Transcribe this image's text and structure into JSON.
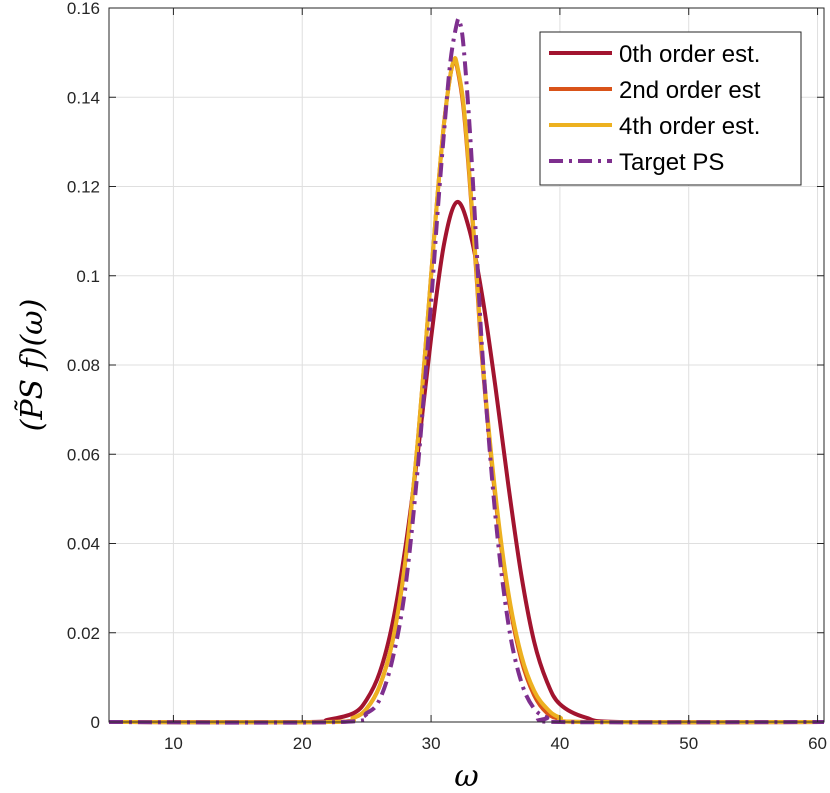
{
  "chart_data": {
    "type": "line",
    "title": "",
    "xlabel": "ω",
    "ylabel": "(P̃S f)(ω)",
    "xlim": [
      5,
      60.5
    ],
    "ylim": [
      0,
      0.16
    ],
    "grid": true,
    "legend_placement": "top-right",
    "xticks": [
      10,
      20,
      30,
      40,
      50,
      60
    ],
    "xtick_labels": [
      "10",
      "20",
      "30",
      "40",
      "50",
      "60"
    ],
    "yticks": [
      0,
      0.02,
      0.04,
      0.06,
      0.08,
      0.1,
      0.12,
      0.14,
      0.16
    ],
    "ytick_labels": [
      "0",
      "0.02",
      "0.04",
      "0.06",
      "0.08",
      "0.1",
      "0.12",
      "0.14",
      "0.16"
    ],
    "series": [
      {
        "name": "0th order est.",
        "color": "#A2142F",
        "style": "solid",
        "x": [
          5,
          20,
          22,
          24,
          25,
          26,
          27,
          28,
          29,
          30,
          31,
          32,
          33,
          34,
          35,
          36,
          37,
          38,
          39,
          40,
          42,
          45,
          60.5
        ],
        "y": [
          0,
          0,
          0.0005,
          0.002,
          0.005,
          0.011,
          0.022,
          0.039,
          0.061,
          0.086,
          0.107,
          0.1165,
          0.11,
          0.095,
          0.075,
          0.053,
          0.033,
          0.018,
          0.009,
          0.004,
          0.001,
          0,
          0
        ]
      },
      {
        "name": "2nd order est",
        "color": "#D95319",
        "style": "solid",
        "x": [
          5,
          22,
          24,
          25,
          26,
          27,
          28,
          29,
          30,
          30.5,
          31,
          31.5,
          31.8,
          32,
          32.5,
          33,
          33.5,
          34,
          35,
          36,
          37,
          38,
          39,
          40,
          42,
          60.5
        ],
        "y": [
          0,
          0,
          0.001,
          0.003,
          0.008,
          0.018,
          0.036,
          0.064,
          0.1,
          0.118,
          0.134,
          0.145,
          0.148,
          0.147,
          0.138,
          0.121,
          0.101,
          0.08,
          0.05,
          0.028,
          0.014,
          0.006,
          0.002,
          0.0007,
          0,
          0
        ]
      },
      {
        "name": "4th order est.",
        "color": "#EDB120",
        "style": "solid",
        "x": [
          5,
          22,
          24,
          25,
          26,
          27,
          28,
          29,
          30,
          30.5,
          31,
          31.5,
          31.8,
          32,
          32.5,
          33,
          33.5,
          34,
          35,
          36,
          37,
          38,
          39,
          40,
          42,
          60.5
        ],
        "y": [
          0,
          0,
          0.001,
          0.003,
          0.008,
          0.018,
          0.036,
          0.064,
          0.1,
          0.118,
          0.134,
          0.145,
          0.1485,
          0.1475,
          0.139,
          0.122,
          0.102,
          0.081,
          0.051,
          0.029,
          0.015,
          0.007,
          0.003,
          0.001,
          0,
          0
        ]
      },
      {
        "name": "Target PS",
        "color": "#7E2F8E",
        "style": "dashdot",
        "x": [
          5,
          23,
          25,
          26,
          27,
          28,
          29,
          30,
          30.5,
          31,
          31.5,
          32,
          32.2,
          32.5,
          33,
          33.5,
          34,
          35,
          36,
          37,
          38,
          39,
          40,
          60.5
        ],
        "y": [
          0,
          0,
          0.002,
          0.005,
          0.014,
          0.03,
          0.058,
          0.094,
          0.114,
          0.132,
          0.148,
          0.1565,
          0.157,
          0.152,
          0.133,
          0.108,
          0.082,
          0.046,
          0.022,
          0.009,
          0.003,
          0.001,
          0,
          0
        ]
      }
    ]
  }
}
